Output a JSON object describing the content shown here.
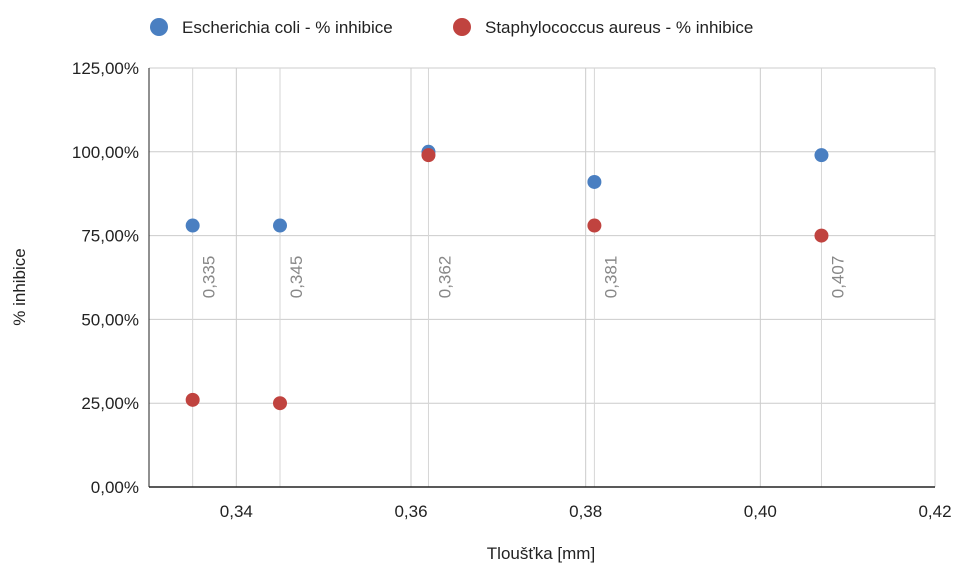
{
  "chart_data": {
    "type": "scatter",
    "title": "",
    "xlabel": "Tloušťka [mm]",
    "ylabel": "% inhibice",
    "xlim": [
      0.33,
      0.42
    ],
    "ylim": [
      0,
      1.25
    ],
    "x_ticks": [
      "0,34",
      "0,36",
      "0,38",
      "0,40",
      "0,42"
    ],
    "x_tick_values": [
      0.34,
      0.36,
      0.38,
      0.4,
      0.42
    ],
    "y_ticks": [
      "0,00%",
      "25,00%",
      "50,00%",
      "75,00%",
      "100,00%",
      "125,00%"
    ],
    "y_tick_values": [
      0,
      0.25,
      0.5,
      0.75,
      1.0,
      1.25
    ],
    "grid": true,
    "legend_position": "top",
    "series": [
      {
        "name": "Escherichia coli - % inhibice",
        "color": "#4a7fc1",
        "x": [
          0.335,
          0.345,
          0.362,
          0.381,
          0.407
        ],
        "y": [
          0.78,
          0.78,
          1.0,
          0.91,
          0.99
        ]
      },
      {
        "name": "Staphylococcus aureus - % inhibice",
        "color": "#c0433f",
        "x": [
          0.335,
          0.345,
          0.362,
          0.381,
          0.407
        ],
        "y": [
          0.26,
          0.25,
          0.99,
          0.78,
          0.75
        ]
      }
    ],
    "point_labels": [
      "0,335",
      "0,345",
      "0,362",
      "0,381",
      "0,407"
    ],
    "point_label_x": [
      0.335,
      0.345,
      0.362,
      0.381,
      0.407
    ]
  }
}
